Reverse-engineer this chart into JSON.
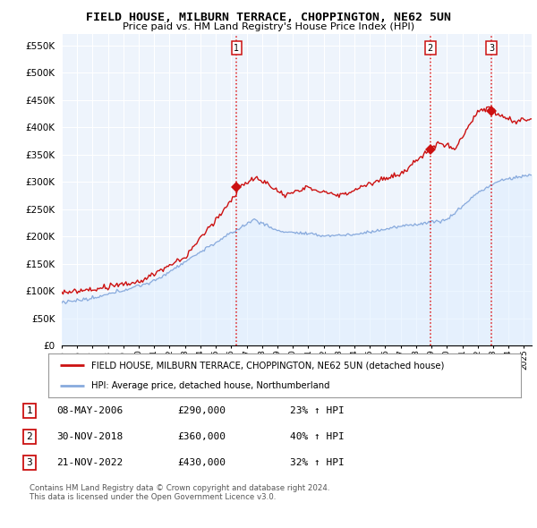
{
  "title1": "FIELD HOUSE, MILBURN TERRACE, CHOPPINGTON, NE62 5UN",
  "title2": "Price paid vs. HM Land Registry's House Price Index (HPI)",
  "ylabel_ticks": [
    "£0",
    "£50K",
    "£100K",
    "£150K",
    "£200K",
    "£250K",
    "£300K",
    "£350K",
    "£400K",
    "£450K",
    "£500K",
    "£550K"
  ],
  "ytick_vals": [
    0,
    50000,
    100000,
    150000,
    200000,
    250000,
    300000,
    350000,
    400000,
    450000,
    500000,
    550000
  ],
  "xlim_start": 1995.0,
  "xlim_end": 2025.5,
  "ylim": [
    0,
    570000
  ],
  "sale_dates": [
    2006.35,
    2018.92,
    2022.88
  ],
  "sale_prices": [
    290000,
    360000,
    430000
  ],
  "sale_labels": [
    "1",
    "2",
    "3"
  ],
  "vline_color": "#dd0000",
  "red_line_color": "#cc1111",
  "blue_line_color": "#88aadd",
  "blue_fill_color": "#ddeeff",
  "legend_label_red": "FIELD HOUSE, MILBURN TERRACE, CHOPPINGTON, NE62 5UN (detached house)",
  "legend_label_blue": "HPI: Average price, detached house, Northumberland",
  "table_rows": [
    [
      "1",
      "08-MAY-2006",
      "£290,000",
      "23% ↑ HPI"
    ],
    [
      "2",
      "30-NOV-2018",
      "£360,000",
      "40% ↑ HPI"
    ],
    [
      "3",
      "21-NOV-2022",
      "£430,000",
      "32% ↑ HPI"
    ]
  ],
  "footnote1": "Contains HM Land Registry data © Crown copyright and database right 2024.",
  "footnote2": "This data is licensed under the Open Government Licence v3.0.",
  "bg_color": "#ffffff",
  "plot_bg_color": "#eef4fc",
  "grid_color": "#ffffff"
}
